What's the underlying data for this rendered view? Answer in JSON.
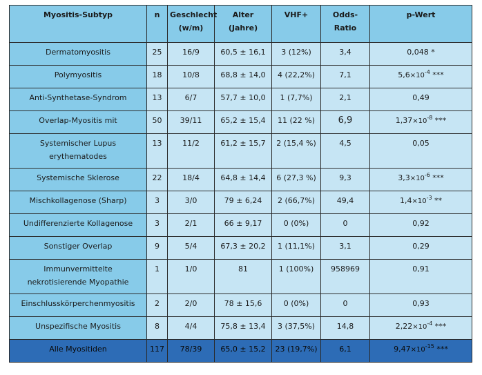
{
  "table": {
    "headers": [
      "Myositis-Subtyp",
      "n",
      "Geschlecht\n(w/m)",
      "Alter\n(Jahre)",
      "VHF+",
      "Odds-\nRatio",
      "p-Wert"
    ],
    "rows": [
      {
        "subtype": "Dermatomyositis",
        "n": "25",
        "sex": "16/9",
        "age": "60,5 ± 16,1",
        "vhf": "3 (12%)",
        "or": "3,4",
        "p_base": "0,048 *",
        "p_exp": "",
        "p_suffix": ""
      },
      {
        "subtype": "Polymyositis",
        "n": "18",
        "sex": "10/8",
        "age": "68,8 ± 14,0",
        "vhf": "4 (22,2%)",
        "or": "7,1",
        "p_base": "5,6",
        "p_exp": "-4",
        "p_suffix": " ***"
      },
      {
        "subtype": "Anti-Synthetase-Syndrom",
        "n": "13",
        "sex": "6/7",
        "age": "57,7 ± 10,0",
        "vhf": "1 (7,7%)",
        "or": "2,1",
        "p_base": "0,49",
        "p_exp": "",
        "p_suffix": ""
      },
      {
        "subtype": "Overlap-Myositis mit",
        "n": "50",
        "sex": "39/11",
        "age": "65,2 ± 15,4",
        "vhf": "11 (22 %)",
        "or": "6,9",
        "p_base": "1,37",
        "p_exp": "-8",
        "p_suffix": " ***"
      },
      {
        "subtype": "Systemischer Lupus\nerythematodes",
        "n": "13",
        "sex": "11/2",
        "age": "61,2 ± 15,7",
        "vhf": "2 (15,4 %)",
        "or": "4,5",
        "p_base": "0,05",
        "p_exp": "",
        "p_suffix": ""
      },
      {
        "subtype": "Systemische Sklerose",
        "n": "22",
        "sex": "18/4",
        "age": "64,8 ± 14,4",
        "vhf": "6 (27,3 %)",
        "or": "9,3",
        "p_base": "3,3",
        "p_exp": "-6",
        "p_suffix": " ***"
      },
      {
        "subtype": "Mischkollagenose (Sharp)",
        "n": "3",
        "sex": "3/0",
        "age": "79 ± 6,24",
        "vhf": "2 (66,7%)",
        "or": "49,4",
        "p_base": "1,4",
        "p_exp": "-3",
        "p_suffix": " **"
      },
      {
        "subtype": "Undifferenzierte Kollagenose",
        "n": "3",
        "sex": "2/1",
        "age": "66 ± 9,17",
        "vhf": "0 (0%)",
        "or": "0",
        "p_base": "0,92",
        "p_exp": "",
        "p_suffix": ""
      },
      {
        "subtype": "Sonstiger Overlap",
        "n": "9",
        "sex": "5/4",
        "age": "67,3 ± 20,2",
        "vhf": "1 (11,1%)",
        "or": "3,1",
        "p_base": "0,29",
        "p_exp": "",
        "p_suffix": ""
      },
      {
        "subtype": "Immunvermittelte\nnekrotisierende Myopathie",
        "n": "1",
        "sex": "1/0",
        "age": "81",
        "vhf": "1 (100%)",
        "or": "958969",
        "p_base": "0,91",
        "p_exp": "",
        "p_suffix": ""
      },
      {
        "subtype": "Einschlusskörperchenmyositis",
        "n": "2",
        "sex": "2/0",
        "age": "78 ± 15,6",
        "vhf": "0 (0%)",
        "or": "0",
        "p_base": "0,93",
        "p_exp": "",
        "p_suffix": ""
      },
      {
        "subtype": "Unspezifische Myositis",
        "n": "8",
        "sex": "4/4",
        "age": "75,8 ± 13,4",
        "vhf": "3 (37,5%)",
        "or": "14,8",
        "p_base": "2,22",
        "p_exp": "-4",
        "p_suffix": " ***"
      }
    ],
    "total": {
      "subtype": "Alle Myositiden",
      "n": "117",
      "sex": "78/39",
      "age": "65,0 ± 15,2",
      "vhf": "23 (19,7%)",
      "or": "6,1",
      "p_base": "9,47",
      "p_exp": "-15",
      "p_suffix": " ***"
    },
    "sci_sep": "×10",
    "colors": {
      "header_bg": "#87cbe9",
      "first_col_bg": "#87cbe9",
      "data_bg": "#c6e5f4",
      "total_bg": "#2d6cb6",
      "border": "#2a2a2a"
    }
  }
}
